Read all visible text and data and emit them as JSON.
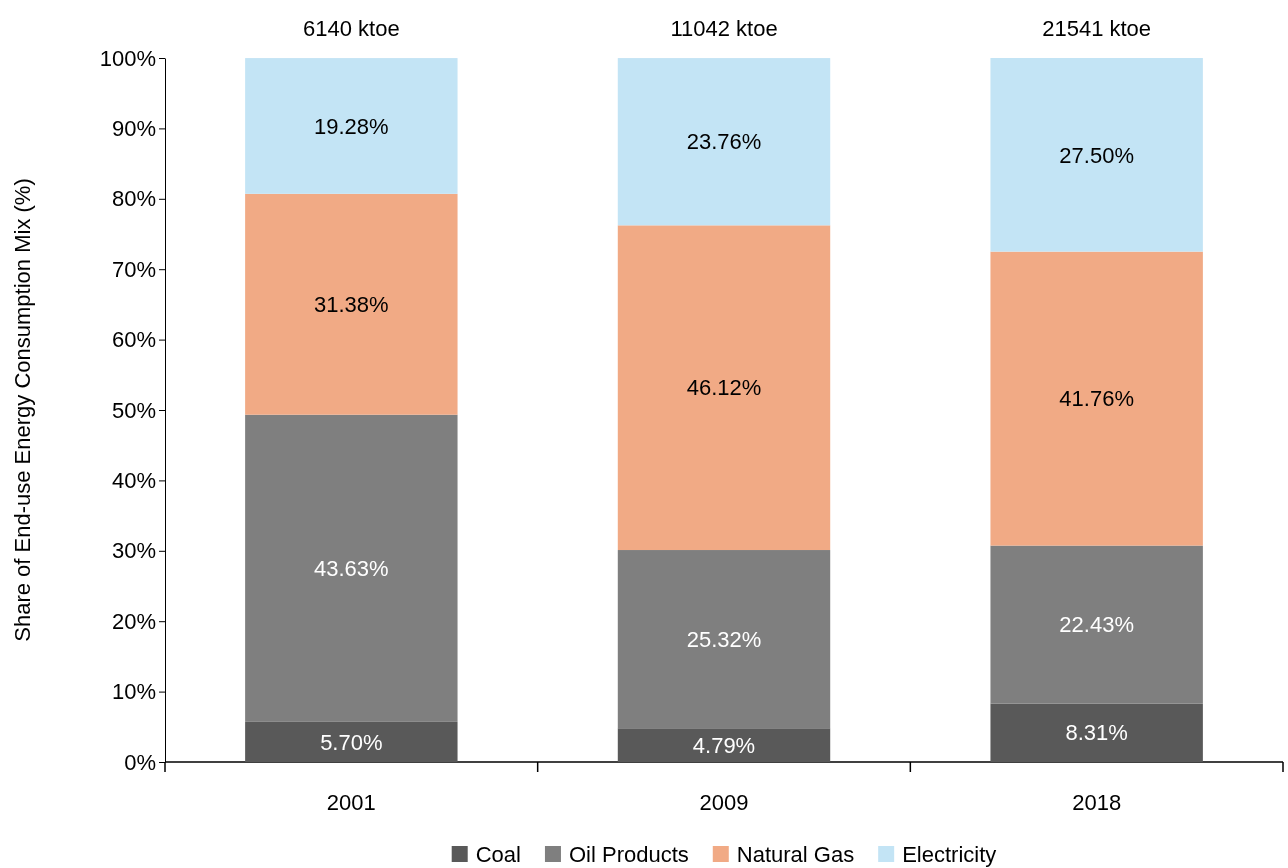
{
  "chart_data": {
    "type": "bar",
    "stacked": true,
    "ylabel": "Share of End-use Energy Consumption Mix (%)",
    "categories": [
      "2001",
      "2009",
      "2018"
    ],
    "series": [
      {
        "name": "Coal",
        "color": "#595959",
        "values": [
          5.7,
          4.79,
          8.31
        ],
        "value_labels": [
          "5.70%",
          "4.79%",
          "8.31%"
        ]
      },
      {
        "name": "Oil Products",
        "color": "#7f7f7f",
        "values": [
          43.63,
          25.32,
          22.43
        ],
        "value_labels": [
          "43.63%",
          "25.32%",
          "22.43%"
        ]
      },
      {
        "name": "Natural Gas",
        "color": "#f1aa85",
        "values": [
          31.38,
          46.12,
          41.76
        ],
        "value_labels": [
          "31.38%",
          "46.12%",
          "41.76%"
        ]
      },
      {
        "name": "Electricity",
        "color": "#c3e4f5",
        "values": [
          19.28,
          23.76,
          27.5
        ],
        "value_labels": [
          "19.28%",
          "23.76%",
          "27.50%"
        ]
      }
    ],
    "annotations": [
      {
        "text": "6140 ktoe",
        "x": "2001",
        "y": 100
      },
      {
        "text": "11042 ktoe",
        "x": "2009",
        "y": 100
      },
      {
        "text": "21541 ktoe",
        "x": "2018",
        "y": 100
      }
    ],
    "ylim": [
      0,
      100
    ],
    "yticks": [
      {
        "value": 0,
        "label": "0%"
      },
      {
        "value": 10,
        "label": "10%"
      },
      {
        "value": 20,
        "label": "20%"
      },
      {
        "value": 30,
        "label": "30%"
      },
      {
        "value": 40,
        "label": "40%"
      },
      {
        "value": 50,
        "label": "50%"
      },
      {
        "value": 60,
        "label": "60%"
      },
      {
        "value": 70,
        "label": "70%"
      },
      {
        "value": 80,
        "label": "80%"
      },
      {
        "value": 90,
        "label": "90%"
      },
      {
        "value": 100,
        "label": "100%"
      }
    ],
    "grid": false,
    "legend": "bottom"
  }
}
